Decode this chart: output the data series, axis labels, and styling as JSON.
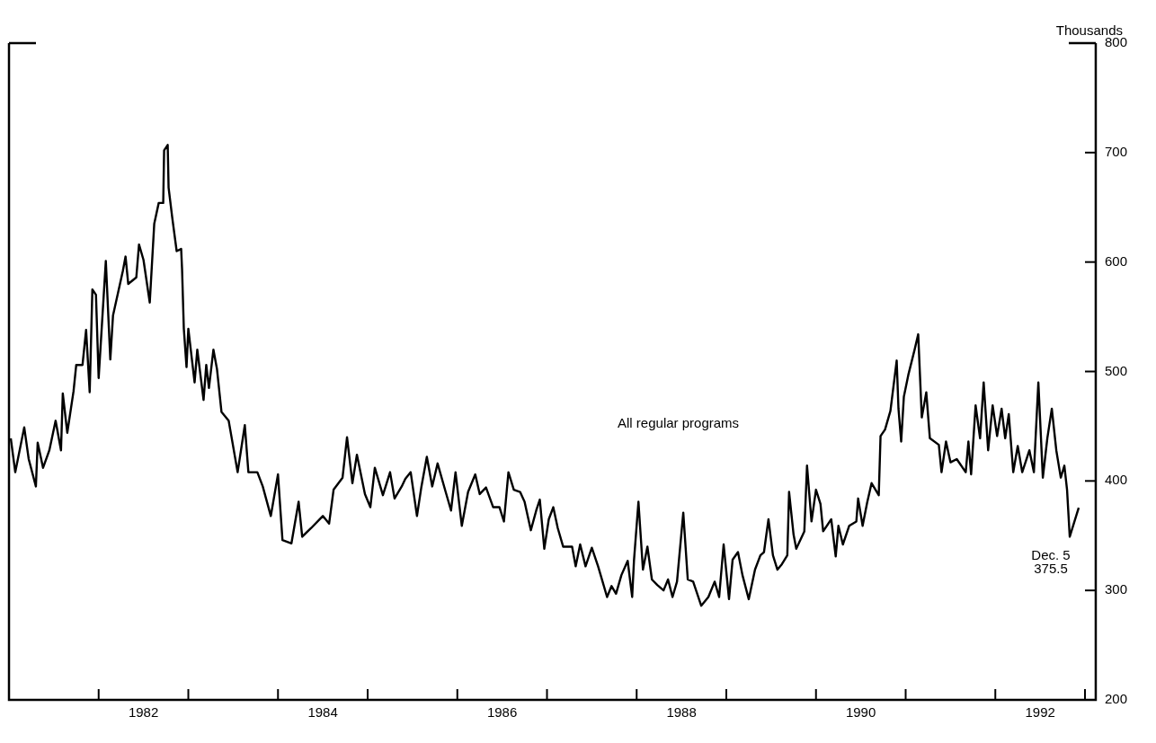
{
  "chart_data": {
    "type": "line",
    "ylabel": "Thousands",
    "xlim": [
      1981,
      1993.12
    ],
    "ylim": [
      200,
      800
    ],
    "xticks": [
      {
        "value": 1982,
        "label": null
      },
      {
        "value": 1982.5,
        "label": "1982"
      },
      {
        "value": 1983,
        "label": null
      },
      {
        "value": 1984,
        "label": null
      },
      {
        "value": 1984.5,
        "label": "1984"
      },
      {
        "value": 1985,
        "label": null
      },
      {
        "value": 1986,
        "label": null
      },
      {
        "value": 1986.5,
        "label": "1986"
      },
      {
        "value": 1987,
        "label": null
      },
      {
        "value": 1988,
        "label": null
      },
      {
        "value": 1988.5,
        "label": "1988"
      },
      {
        "value": 1989,
        "label": null
      },
      {
        "value": 1990,
        "label": null
      },
      {
        "value": 1990.5,
        "label": "1990"
      },
      {
        "value": 1991,
        "label": null
      },
      {
        "value": 1992,
        "label": null
      },
      {
        "value": 1992.5,
        "label": "1992"
      },
      {
        "value": 1993,
        "label": null
      }
    ],
    "yticks": [
      200,
      300,
      400,
      500,
      600,
      700,
      800
    ],
    "legend": false,
    "annotations": [
      "Dec. 5\n375.5"
    ],
    "series": [
      {
        "name": "All regular programs",
        "color": "#000000",
        "x": [
          1981.02,
          1981.07,
          1981.17,
          1981.22,
          1981.3,
          1981.32,
          1981.38,
          1981.45,
          1981.52,
          1981.58,
          1981.6,
          1981.65,
          1981.72,
          1981.75,
          1981.82,
          1981.86,
          1981.9,
          1981.93,
          1981.97,
          1982.0,
          1982.08,
          1982.13,
          1982.16,
          1982.27,
          1982.3,
          1982.33,
          1982.42,
          1982.45,
          1982.5,
          1982.57,
          1982.62,
          1982.67,
          1982.72,
          1982.73,
          1982.77,
          1982.78,
          1982.82,
          1982.87,
          1982.92,
          1982.93,
          1982.95,
          1982.98,
          1983.0,
          1983.07,
          1983.1,
          1983.17,
          1983.2,
          1983.23,
          1983.28,
          1983.32,
          1983.37,
          1983.45,
          1983.48,
          1983.55,
          1983.63,
          1983.67,
          1983.77,
          1983.83,
          1983.92,
          1984.0,
          1984.05,
          1984.15,
          1984.23,
          1984.27,
          1984.37,
          1984.5,
          1984.57,
          1984.62,
          1984.72,
          1984.77,
          1984.83,
          1984.88,
          1984.97,
          1985.03,
          1985.08,
          1985.17,
          1985.25,
          1985.3,
          1985.38,
          1985.42,
          1985.48,
          1985.55,
          1985.6,
          1985.66,
          1985.72,
          1985.78,
          1985.87,
          1985.93,
          1985.98,
          1986.05,
          1986.12,
          1986.2,
          1986.25,
          1986.32,
          1986.4,
          1986.47,
          1986.52,
          1986.57,
          1986.63,
          1986.7,
          1986.75,
          1986.82,
          1986.88,
          1986.92,
          1986.97,
          1987.02,
          1987.07,
          1987.12,
          1987.18,
          1987.28,
          1987.32,
          1987.37,
          1987.43,
          1987.5,
          1987.57,
          1987.62,
          1987.67,
          1987.72,
          1987.77,
          1987.83,
          1987.9,
          1987.95,
          1987.97,
          1988.02,
          1988.07,
          1988.12,
          1988.17,
          1988.23,
          1988.3,
          1988.35,
          1988.4,
          1988.45,
          1988.52,
          1988.57,
          1988.63,
          1988.72,
          1988.8,
          1988.87,
          1988.92,
          1988.97,
          1989.03,
          1989.07,
          1989.13,
          1989.18,
          1989.25,
          1989.32,
          1989.38,
          1989.42,
          1989.47,
          1989.52,
          1989.57,
          1989.62,
          1989.68,
          1989.7,
          1989.75,
          1989.78,
          1989.87,
          1989.9,
          1989.95,
          1990.0,
          1990.05,
          1990.08,
          1990.17,
          1990.22,
          1990.25,
          1990.3,
          1990.37,
          1990.45,
          1990.47,
          1990.52,
          1990.57,
          1990.62,
          1990.7,
          1990.72,
          1990.77,
          1990.83,
          1990.9,
          1990.92,
          1990.95,
          1990.98,
          1991.03,
          1991.1,
          1991.14,
          1991.18,
          1991.23,
          1991.27,
          1991.37,
          1991.4,
          1991.45,
          1991.5,
          1991.57,
          1991.67,
          1991.7,
          1991.73,
          1991.78,
          1991.83,
          1991.87,
          1991.92,
          1991.97,
          1992.02,
          1992.07,
          1992.11,
          1992.15,
          1992.2,
          1992.25,
          1992.3,
          1992.38,
          1992.43,
          1992.48,
          1992.53,
          1992.58,
          1992.63,
          1992.68,
          1992.73,
          1992.77,
          1992.8,
          1992.83,
          1992.93
        ],
        "values": [
          439,
          408,
          449,
          420,
          395,
          435,
          412,
          428,
          455,
          428,
          480,
          444,
          482,
          506,
          506,
          538,
          481,
          575,
          570,
          494,
          601,
          511,
          551,
          592,
          605,
          580,
          586,
          616,
          602,
          563,
          635,
          654,
          654,
          702,
          707,
          668,
          641,
          610,
          612,
          594,
          539,
          504,
          539,
          490,
          520,
          474,
          506,
          485,
          520,
          502,
          463,
          455,
          441,
          408,
          451,
          408,
          408,
          395,
          368,
          406,
          346,
          343,
          381,
          349,
          357,
          368,
          361,
          392,
          403,
          440,
          398,
          424,
          388,
          376,
          412,
          387,
          408,
          384,
          395,
          402,
          408,
          368,
          395,
          422,
          395,
          416,
          390,
          373,
          408,
          359,
          390,
          406,
          388,
          394,
          376,
          376,
          363,
          408,
          392,
          390,
          381,
          355,
          373,
          383,
          338,
          365,
          376,
          357,
          340,
          340,
          322,
          342,
          322,
          339,
          322,
          308,
          294,
          304,
          297,
          314,
          327,
          294,
          327,
          381,
          319,
          340,
          310,
          305,
          300,
          310,
          294,
          308,
          371,
          310,
          308,
          286,
          294,
          308,
          294,
          342,
          292,
          328,
          335,
          314,
          292,
          319,
          332,
          335,
          365,
          332,
          319,
          324,
          332,
          390,
          351,
          338,
          354,
          414,
          363,
          392,
          379,
          354,
          365,
          331,
          359,
          342,
          359,
          363,
          384,
          359,
          380,
          398,
          387,
          441,
          447,
          464,
          510,
          466,
          436,
          477,
          497,
          520,
          534,
          458,
          481,
          439,
          433,
          408,
          436,
          417,
          420,
          408,
          436,
          406,
          469,
          439,
          490,
          428,
          469,
          441,
          466,
          439,
          461,
          408,
          432,
          408,
          428,
          408,
          490,
          403,
          439,
          466,
          428,
          403,
          414,
          392,
          349,
          375.5
        ]
      }
    ]
  }
}
